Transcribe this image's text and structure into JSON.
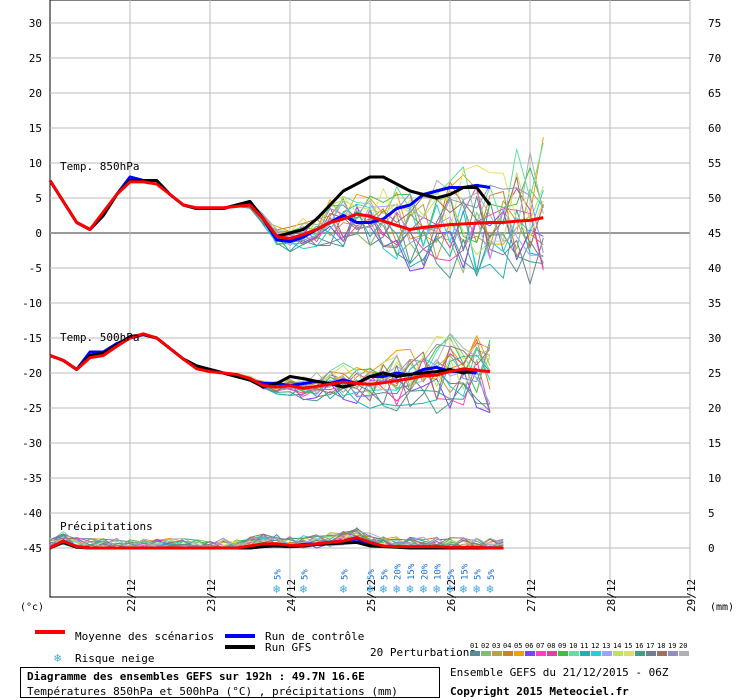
{
  "chart_data": {
    "type": "line",
    "title": "Diagramme des ensembles GEFS sur 192h : 49.7N 16.6E",
    "subtitle": "Températures 850hPa et 500hPa (°C) , précipitations (mm)",
    "left_axis_unit": "(°c)",
    "right_axis_unit": "(mm)",
    "left_ticks": [
      30,
      25,
      20,
      15,
      10,
      5,
      0,
      -5,
      -10,
      -15,
      -20,
      -25,
      -30,
      -35,
      -40,
      -45
    ],
    "right_ticks": [
      75,
      70,
      65,
      60,
      55,
      50,
      45,
      40,
      35,
      30,
      25,
      20,
      15,
      10,
      5,
      0
    ],
    "ylim_temp": [
      -45,
      30
    ],
    "ylim_precip": [
      0,
      75
    ],
    "x_labels": [
      "22/12",
      "23/12",
      "24/12",
      "25/12",
      "26/12",
      "27/12",
      "28/12",
      "29/12"
    ],
    "x_steps": 48,
    "sections": {
      "t850": "Temp. 850hPa",
      "t500": "Temp. 500hPa",
      "precip": "Précipitations"
    },
    "snow_risk": [
      {
        "step": 17,
        "label": "5%"
      },
      {
        "step": 19,
        "label": "5%"
      },
      {
        "step": 22,
        "label": "5%"
      },
      {
        "step": 24,
        "label": "5%"
      },
      {
        "step": 25,
        "label": "5%"
      },
      {
        "step": 26,
        "label": "20%"
      },
      {
        "step": 27,
        "label": "15%"
      },
      {
        "step": 28,
        "label": "20%"
      },
      {
        "step": 29,
        "label": "10%"
      },
      {
        "step": 30,
        "label": "5%"
      },
      {
        "step": 31,
        "label": "15%"
      },
      {
        "step": 32,
        "label": "5%"
      },
      {
        "step": 33,
        "label": "5%"
      }
    ],
    "series": [
      {
        "name": "Moyenne des scénarios",
        "color": "#ff0000",
        "t850": [
          7.5,
          4.5,
          1.5,
          0.5,
          3,
          5.5,
          7.3,
          7.3,
          7,
          5.5,
          4,
          3.6,
          3.6,
          3.6,
          3.8,
          4,
          2,
          -0.5,
          -0.8,
          -0.2,
          0.5,
          1.5,
          2,
          2.7,
          2.4,
          1.7,
          1.1,
          0.5,
          0.8,
          1,
          1.2,
          1.3,
          1.4,
          1.5,
          1.5,
          1.7,
          1.8,
          2.2
        ],
        "t500": [
          -17.5,
          -18.2,
          -19.5,
          -17.8,
          -17.5,
          -16.2,
          -15,
          -14.4,
          -15,
          -16.5,
          -18,
          -19.4,
          -19.8,
          -20,
          -20.2,
          -20.8,
          -21.8,
          -22,
          -21.8,
          -22.2,
          -21.9,
          -21.6,
          -21.3,
          -21.5,
          -21.6,
          -21.4,
          -21.1,
          -20.8,
          -20.4,
          -20.3,
          -19.8,
          -19.4,
          -19.6,
          -19.8
        ],
        "precip": [
          0,
          1,
          0.2,
          0,
          0,
          0,
          0,
          0,
          0,
          0,
          0,
          0,
          0,
          0,
          0,
          0.3,
          0.6,
          0.6,
          0.4,
          0.4,
          0.6,
          0.8,
          1,
          1.5,
          0.8,
          0.3,
          0.2,
          0.2,
          0.2,
          0.2,
          0.1,
          0.1,
          0.1,
          0,
          0
        ]
      },
      {
        "name": "Run de contrôle",
        "color": "#0000ff",
        "t850": [
          7.5,
          4.5,
          1.5,
          0.5,
          2.5,
          5.5,
          8,
          7.5,
          7.5,
          5.5,
          4,
          3.5,
          3.5,
          3.5,
          4,
          4.5,
          2,
          -1,
          -1.2,
          -0.6,
          0.5,
          1.5,
          2.5,
          1.5,
          1.5,
          2,
          3.5,
          4,
          5.5,
          6,
          6.5,
          6.5,
          6.8,
          6.5
        ],
        "t500": [
          -17.5,
          -18.2,
          -19.5,
          -17,
          -17,
          -15.8,
          -15,
          -14.5,
          -15,
          -16.5,
          -18,
          -19,
          -19.5,
          -20,
          -20.5,
          -21,
          -21.5,
          -21.5,
          -21.8,
          -21.5,
          -21.2,
          -21.5,
          -21,
          -21.5,
          -20.5,
          -20.5,
          -20,
          -20.3,
          -19.5,
          -19.2,
          -19.8,
          -19.8,
          -20
        ],
        "precip": [
          0,
          1,
          0.2,
          0,
          0,
          0,
          0,
          0,
          0,
          0,
          0,
          0,
          0,
          0,
          0,
          0,
          0.4,
          0.4,
          0.3,
          0.5,
          0.6,
          0.8,
          1,
          1.3,
          0.5,
          0.3,
          0.2,
          0.1,
          0.1,
          0.1,
          0,
          0,
          0,
          0,
          0
        ]
      },
      {
        "name": "Run GFS",
        "color": "#000000",
        "t850": [
          7.5,
          4.5,
          1.5,
          0.5,
          2.5,
          5.5,
          7.5,
          7.5,
          7.5,
          5.5,
          4,
          3.5,
          3.5,
          3.5,
          4,
          4.5,
          2,
          -0.5,
          0,
          0.5,
          2,
          4,
          6,
          7,
          8,
          8,
          7,
          6,
          5.5,
          5,
          5.5,
          6.5,
          6.5,
          4
        ],
        "t500": [
          -17.5,
          -18.2,
          -19.5,
          -17.5,
          -17.2,
          -16,
          -14.8,
          -14.5,
          -15,
          -16.5,
          -18,
          -19,
          -19.5,
          -20,
          -20.5,
          -21,
          -22,
          -21.5,
          -20.5,
          -20.8,
          -21.2,
          -21.5,
          -22,
          -21.5,
          -20.5,
          -20,
          -20.5,
          -20.2,
          -20,
          -19.8,
          -19.5,
          -20,
          -19.5
        ],
        "precip": [
          0,
          0.8,
          0.1,
          0,
          0,
          0,
          0,
          0,
          0,
          0,
          0,
          0,
          0,
          0,
          0,
          0,
          0.2,
          0.3,
          0.2,
          0.3,
          0.5,
          0.6,
          0.7,
          0.8,
          0.3,
          0.2,
          0.1,
          0,
          0,
          0,
          0,
          0,
          0,
          0,
          0
        ]
      }
    ],
    "legend": {
      "mean": "Moyenne des scénarios",
      "control": "Run de contrôle",
      "gfs": "Run GFS",
      "snow": "Risque neige",
      "perturbations": "20 Perturbations",
      "perturbation_labels": [
        "01",
        "02",
        "03",
        "04",
        "05",
        "06",
        "07",
        "08",
        "09",
        "10",
        "11",
        "12",
        "13",
        "14",
        "15",
        "16",
        "17",
        "18",
        "19",
        "20"
      ],
      "perturbation_colors": [
        "#5a8a9a",
        "#80c060",
        "#c0a040",
        "#d08020",
        "#f0a000",
        "#8040ff",
        "#ff40c0",
        "#e040a0",
        "#40c040",
        "#60e0a0",
        "#20b0b0",
        "#20d0e0",
        "#a0a0ff",
        "#c0e060",
        "#e0e060",
        "#40a080",
        "#708090",
        "#a07060",
        "#9090c0",
        "#b0b0b0"
      ]
    }
  },
  "info": {
    "title": "Diagramme des ensembles GEFS sur 192h : 49.7N 16.6E",
    "subtitle": "Températures 850hPa et 500hPa (°C) , précipitations (mm)",
    "run": "Ensemble GEFS du 21/12/2015 - 06Z",
    "copyright": "Copyright 2015 Meteociel.fr"
  }
}
